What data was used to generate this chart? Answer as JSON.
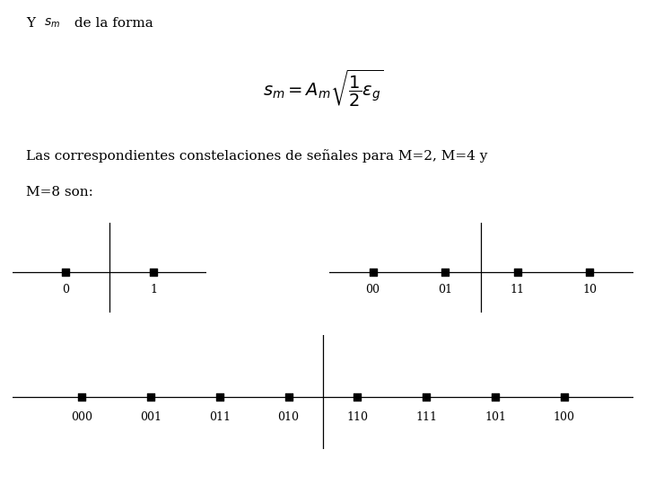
{
  "bg_color": "#ffffff",
  "text_color": "#000000",
  "line_color": "#000000",
  "m2_points": [
    -1,
    1
  ],
  "m2_labels": [
    "0",
    "1"
  ],
  "m4_points": [
    -3,
    -1,
    1,
    3
  ],
  "m4_labels": [
    "00",
    "01",
    "11",
    "10"
  ],
  "m8_points": [
    -7,
    -5,
    -3,
    -1,
    1,
    3,
    5,
    7
  ],
  "m8_labels": [
    "000",
    "001",
    "011",
    "010",
    "110",
    "111",
    "101",
    "100"
  ],
  "dot_size": 30,
  "dot_color": "#000000",
  "label_fontsize": 9,
  "text_fontsize": 11,
  "formula_fontsize": 14,
  "header_fontsize": 11
}
